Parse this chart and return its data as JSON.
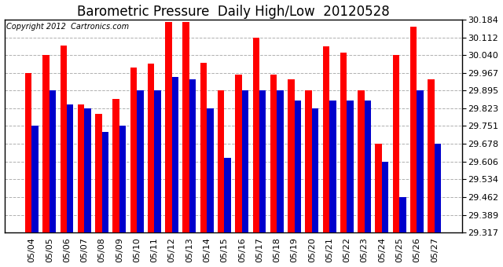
{
  "title": "Barometric Pressure  Daily High/Low  20120528",
  "copyright": "Copyright 2012  Cartronics.com",
  "dates": [
    "05/04",
    "05/05",
    "05/06",
    "05/07",
    "05/08",
    "05/09",
    "05/10",
    "05/11",
    "05/12",
    "05/13",
    "05/14",
    "05/15",
    "05/16",
    "05/17",
    "05/18",
    "05/19",
    "05/20",
    "05/21",
    "05/22",
    "05/23",
    "05/24",
    "05/25",
    "05/26",
    "05/27"
  ],
  "highs": [
    29.967,
    30.04,
    30.078,
    29.84,
    29.8,
    29.86,
    29.99,
    30.005,
    30.175,
    30.175,
    30.01,
    29.895,
    29.96,
    30.112,
    29.96,
    29.94,
    29.895,
    30.075,
    30.05,
    29.895,
    29.68,
    30.04,
    30.155,
    29.94
  ],
  "lows": [
    29.751,
    29.895,
    29.84,
    29.823,
    29.728,
    29.751,
    29.895,
    29.895,
    29.95,
    29.94,
    29.823,
    29.623,
    29.895,
    29.895,
    29.895,
    29.855,
    29.823,
    29.855,
    29.855,
    29.855,
    29.606,
    29.462,
    29.895,
    29.678
  ],
  "bar_width": 0.38,
  "high_color": "#ff0000",
  "low_color": "#0000cc",
  "bg_color": "#ffffff",
  "grid_color": "#b0b0b0",
  "ymin": 29.317,
  "ymax": 30.184,
  "yticks": [
    29.317,
    29.389,
    29.462,
    29.534,
    29.606,
    29.678,
    29.751,
    29.823,
    29.895,
    29.967,
    30.04,
    30.112,
    30.184
  ],
  "title_fontsize": 12,
  "tick_fontsize": 8,
  "copyright_fontsize": 7
}
